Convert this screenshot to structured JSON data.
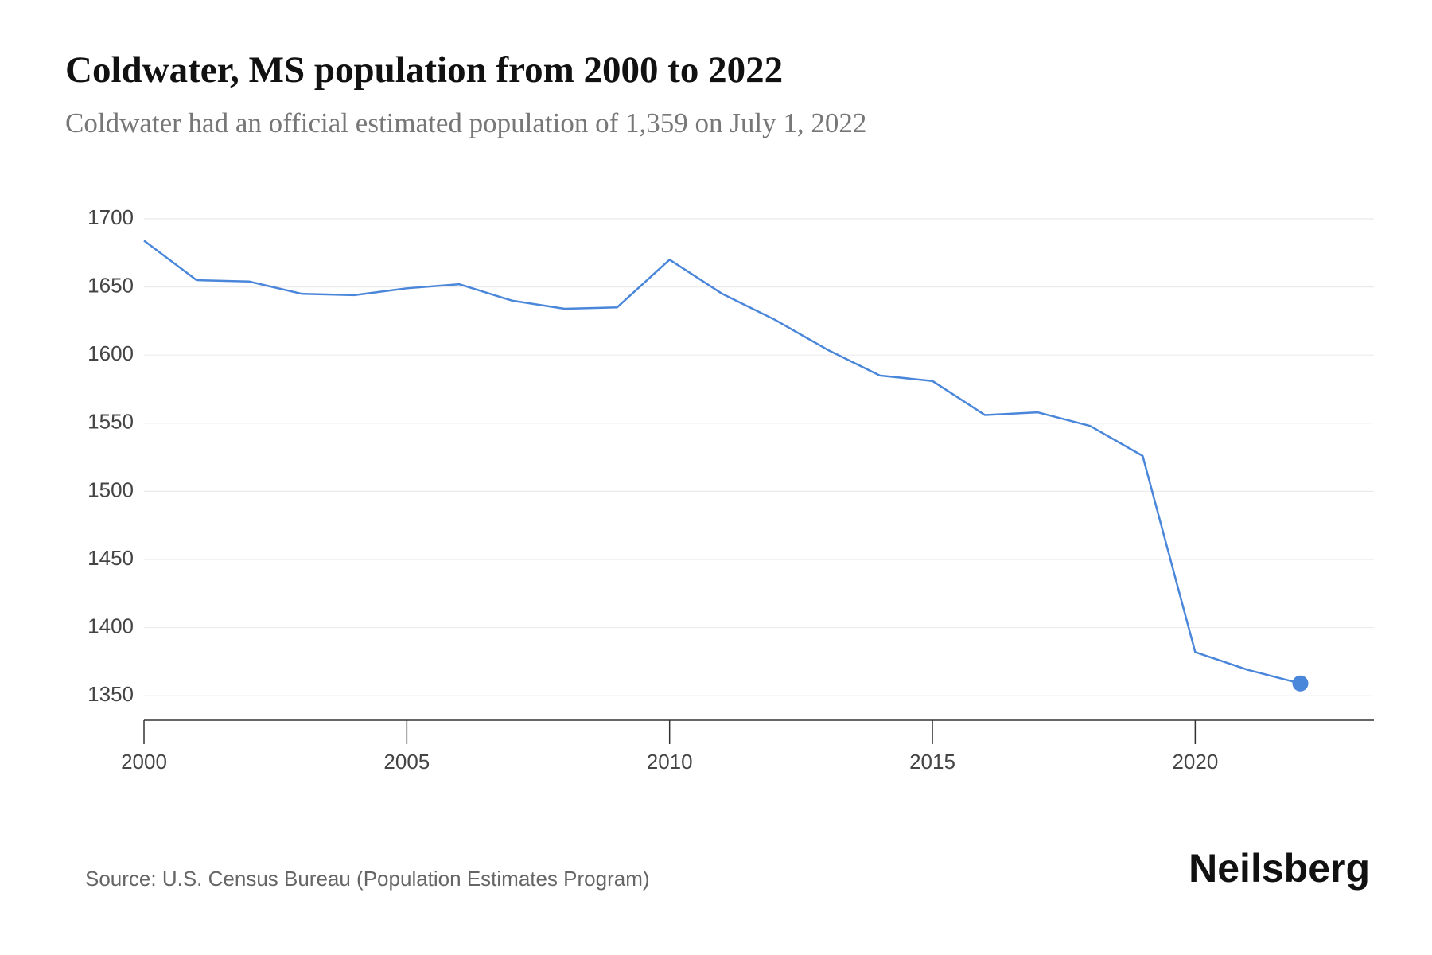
{
  "chart_data": {
    "type": "line",
    "title": "Coldwater, MS population from 2000 to 2022",
    "subtitle": "Coldwater had an official estimated population of 1,359 on July 1, 2022",
    "x": [
      2000,
      2001,
      2002,
      2003,
      2004,
      2005,
      2006,
      2007,
      2008,
      2009,
      2010,
      2011,
      2012,
      2013,
      2014,
      2015,
      2016,
      2017,
      2018,
      2019,
      2020,
      2021,
      2022
    ],
    "series": [
      {
        "name": "Population",
        "color": "#4a86d9",
        "values": [
          1684,
          1655,
          1654,
          1645,
          1644,
          1649,
          1652,
          1640,
          1634,
          1635,
          1670,
          1645,
          1626,
          1604,
          1585,
          1581,
          1556,
          1558,
          1548,
          1526,
          1382,
          1369,
          1359
        ]
      }
    ],
    "xlim": [
      2000,
      2023.4
    ],
    "xticks": [
      2000,
      2005,
      2010,
      2015,
      2020
    ],
    "ylim": [
      1332,
      1700
    ],
    "yticks": [
      1350,
      1400,
      1450,
      1500,
      1550,
      1600,
      1650,
      1700
    ],
    "grid": true,
    "marker": "last",
    "source": "Source: U.S. Census Bureau (Population Estimates Program)",
    "brand": "Neilsberg"
  }
}
